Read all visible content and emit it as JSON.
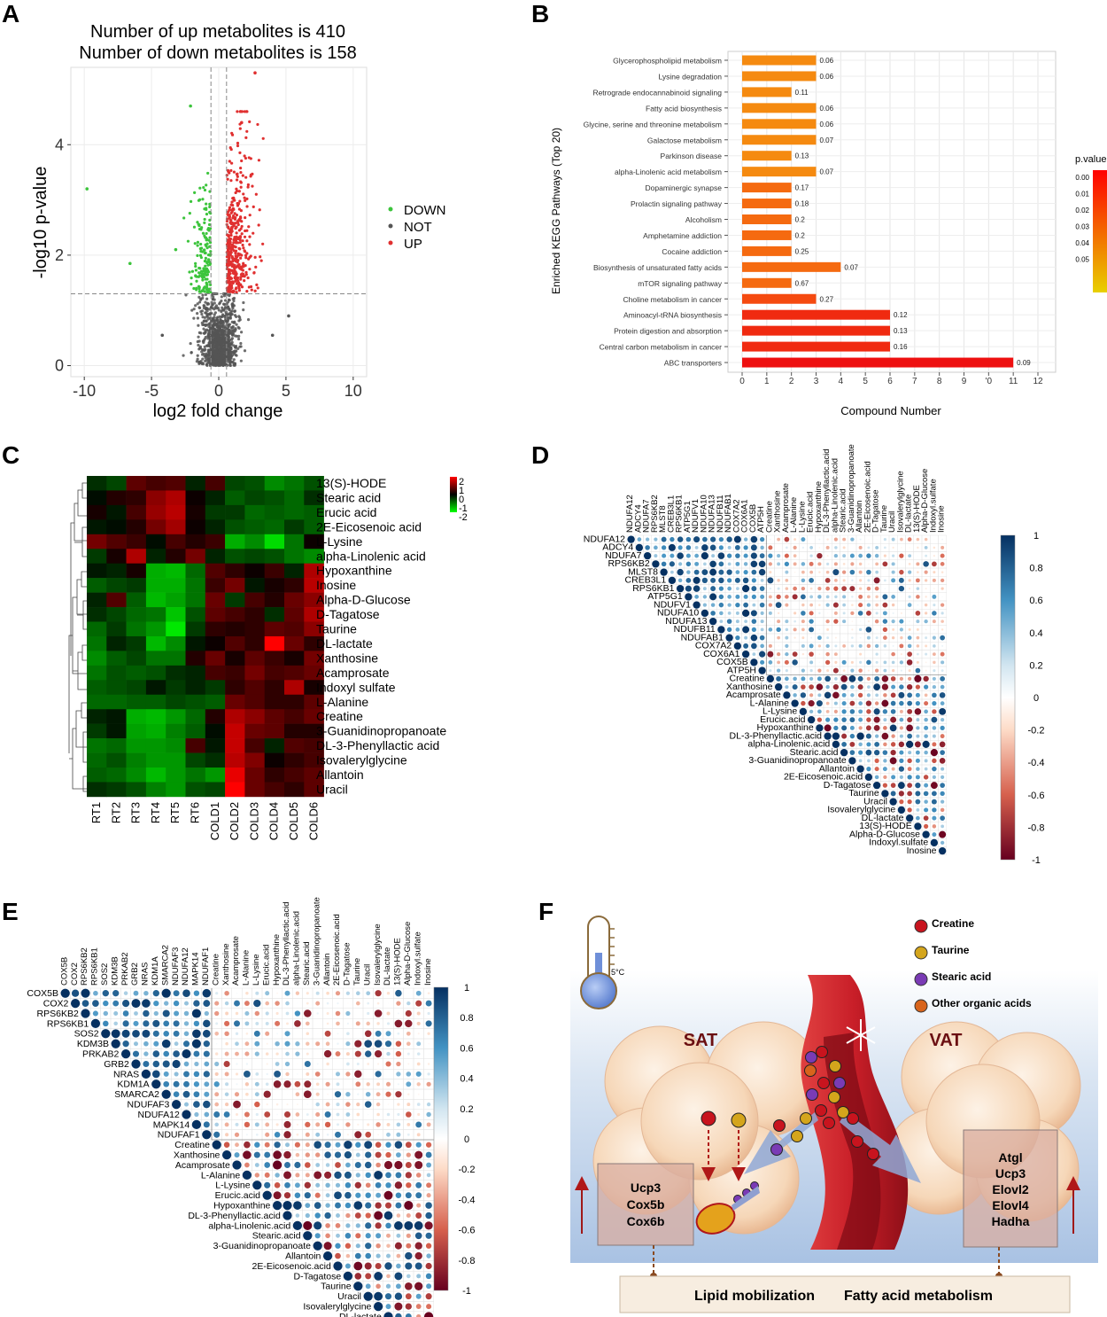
{
  "panels": {
    "a": "A",
    "b": "B",
    "c": "C",
    "d": "D",
    "e": "E",
    "f": "F"
  },
  "chart_data": [
    {
      "id": "A",
      "type": "scatter",
      "title": [
        "Number of up metabolites is 410",
        "Number of down metabolites is 158"
      ],
      "xlabel": "log2 fold change",
      "ylabel": "-log10 p-value",
      "xlim": [
        -11,
        11
      ],
      "ylim": [
        -0.2,
        5.4
      ],
      "xticks": [
        -10,
        -5,
        0,
        5,
        10
      ],
      "yticks": [
        0,
        2,
        4
      ],
      "threshold_x": [
        -0.58,
        0.58
      ],
      "threshold_y": 1.3,
      "legend": [
        {
          "name": "DOWN",
          "color": "#3cc43c"
        },
        {
          "name": "NOT",
          "color": "#555555"
        },
        {
          "name": "UP",
          "color": "#e03030"
        }
      ],
      "highlight_points": [
        {
          "x": 2.7,
          "y": 5.3,
          "group": "UP"
        },
        {
          "x": -2.1,
          "y": 4.7,
          "group": "DOWN"
        },
        {
          "x": -9.8,
          "y": 3.2,
          "group": "DOWN"
        },
        {
          "x": -6.6,
          "y": 1.85,
          "group": "DOWN"
        },
        {
          "x": -3.2,
          "y": 2.1,
          "group": "DOWN"
        },
        {
          "x": 1.7,
          "y": 4.4,
          "group": "UP"
        },
        {
          "x": -4.2,
          "y": 0.55,
          "group": "NOT"
        },
        {
          "x": 5.2,
          "y": 0.9,
          "group": "NOT"
        },
        {
          "x": 4.0,
          "y": 0.55,
          "group": "NOT"
        }
      ]
    },
    {
      "id": "B",
      "type": "bar",
      "orientation": "horizontal",
      "ylabel": "Enriched KEGG Pathways (Top 20)",
      "xlabel": "Compound Number",
      "xlim": [
        0,
        12
      ],
      "xticks": [
        "0",
        "1",
        "2",
        "3",
        "4",
        "5",
        "6",
        "7",
        "8",
        "9",
        "'0",
        "11",
        "12"
      ],
      "legend_title": "p.value",
      "legend_ticks": [
        "0.00",
        "0.01",
        "0.02",
        "0.03",
        "0.04",
        "0.05"
      ],
      "categories": [
        "Glycerophospholipid metabolism",
        "Lysine degradation",
        "Retrograde endocannabinoid signaling",
        "Fatty acid biosynthesis",
        "Glycine, serine and threonine metabolism",
        "Galactose metabolism",
        "Parkinson disease",
        "alpha-Linolenic acid metabolism",
        "Dopaminergic synapse",
        "Prolactin signaling pathway",
        "Alcoholism",
        "Amphetamine addiction",
        "Cocaine addiction",
        "Biosynthesis of unsaturated fatty acids",
        "mTOR signaling pathway",
        "Choline metabolism in cancer",
        "Aminoacyl-tRNA biosynthesis",
        "Protein digestion and absorption",
        "Central carbon metabolism in cancer",
        "ABC transporters"
      ],
      "values": [
        3,
        3,
        2,
        3,
        3,
        3,
        2,
        3,
        2,
        2,
        2,
        2,
        2,
        4,
        2,
        3,
        6,
        6,
        6,
        11
      ],
      "pvalues": [
        0.06,
        0.06,
        0.11,
        0.06,
        0.06,
        0.07,
        0.13,
        0.07,
        0.17,
        0.18,
        0.2,
        0.2,
        0.25,
        0.07,
        0.67,
        0.27,
        0.12,
        0.13,
        0.16,
        0.09
      ],
      "value_labels": [
        "0.06",
        "0.06",
        "0.11",
        "0.06",
        "0.06",
        "0.07",
        "0.13",
        "0.07",
        "0.17",
        "0.18",
        "0.2",
        "0.2",
        "0.25",
        "0.07",
        "0.67",
        "0.27",
        "0.12",
        "0.13",
        "0.16",
        "0.09"
      ],
      "bar_colors": [
        "#f58a10",
        "#f58a10",
        "#f58a10",
        "#f58a10",
        "#f58a10",
        "#f58a10",
        "#f58a10",
        "#f58a10",
        "#f56a10",
        "#f56a10",
        "#f56a10",
        "#f56a10",
        "#f56a10",
        "#f56a10",
        "#f56a10",
        "#f54a10",
        "#f02a10",
        "#f02a10",
        "#f02a10",
        "#ee1010"
      ]
    },
    {
      "id": "C",
      "type": "heatmap",
      "columns": [
        "RT1",
        "RT2",
        "RT3",
        "RT4",
        "RT5",
        "RT6",
        "COLD1",
        "COLD2",
        "COLD3",
        "COLD4",
        "COLD5",
        "COLD6"
      ],
      "rows": [
        "13(S)-HODE",
        "Stearic acid",
        "Erucic acid",
        "2E-Eicosenoic acid",
        "L-Lysine",
        "alpha-Linolenic acid",
        "Hypoxanthine",
        "Inosine",
        "Alpha-D-Glucose",
        "D-Tagatose",
        "Taurine",
        "DL-lactate",
        "Xanthosine",
        "Acamprosate",
        "Indoxyl sulfate",
        "L-Alanine",
        "Creatine",
        "3-Guanidinopropanoate",
        "DL-3-Phenyllactic acid",
        "Isovalerylglycine",
        "Allantoin",
        "Uracil"
      ],
      "colorbar_ticks": [
        "2",
        "1",
        "0",
        "-1",
        "-2"
      ],
      "values": [
        [
          -0.4,
          -0.6,
          0.8,
          0.6,
          0.7,
          -0.3,
          0.6,
          -0.6,
          -0.7,
          -1.2,
          -1.0,
          -0.7
        ],
        [
          -0.1,
          0.3,
          0.4,
          1.2,
          1.5,
          0.1,
          -0.3,
          -0.8,
          -0.6,
          -0.7,
          -0.9,
          -0.4
        ],
        [
          0.2,
          -0.2,
          0.6,
          1.3,
          1.6,
          0.2,
          -0.5,
          -0.5,
          -0.9,
          -0.8,
          -0.9,
          -0.8
        ],
        [
          -0.2,
          -0.1,
          0.3,
          1.0,
          1.4,
          0.1,
          -0.3,
          -0.7,
          -0.8,
          -0.9,
          -0.5,
          -0.8
        ],
        [
          1.0,
          0.7,
          0.5,
          -0.1,
          0.6,
          0.3,
          0.5,
          -1.5,
          -1.2,
          -1.9,
          -1.0,
          0.1
        ],
        [
          -0.5,
          0.2,
          1.5,
          -0.3,
          0.3,
          1.0,
          -0.3,
          -0.7,
          -0.6,
          -0.7,
          -1.0,
          -1.2
        ],
        [
          -0.2,
          -0.3,
          0.2,
          -1.5,
          -1.6,
          -0.9,
          0.7,
          0.4,
          0.1,
          0.5,
          -0.3,
          1.5
        ],
        [
          -0.8,
          -0.6,
          -0.5,
          -1.5,
          -1.5,
          -1.0,
          0.5,
          1.0,
          -0.2,
          0.2,
          0.4,
          1.6
        ],
        [
          -0.3,
          0.7,
          -0.8,
          -1.6,
          -1.4,
          -1.0,
          0.9,
          -0.5,
          0.6,
          0.3,
          0.9,
          1.2
        ],
        [
          -0.4,
          -0.6,
          -0.9,
          -1.0,
          -1.7,
          -0.7,
          0.8,
          0.6,
          0.4,
          -0.4,
          0.8,
          1.5
        ],
        [
          -0.9,
          -0.5,
          -1.0,
          -1.3,
          -2.0,
          -0.5,
          0.4,
          0.3,
          0.4,
          0.8,
          0.7,
          1.2
        ],
        [
          -1.0,
          -0.3,
          -0.5,
          -1.6,
          -1.2,
          -0.2,
          0.1,
          0.7,
          0.4,
          2.2,
          0.9,
          0.4
        ],
        [
          -1.2,
          -0.8,
          -0.6,
          -1.0,
          -1.0,
          0.3,
          0.9,
          0.2,
          0.8,
          0.5,
          0.2,
          1.0
        ],
        [
          -1.0,
          -0.7,
          -0.8,
          -0.7,
          -0.4,
          -0.3,
          0.6,
          0.5,
          1.0,
          0.6,
          0.7,
          0.9
        ],
        [
          -0.8,
          -0.7,
          -0.6,
          -0.2,
          -0.5,
          -0.3,
          -0.5,
          0.4,
          0.7,
          0.4,
          1.5,
          0.2
        ],
        [
          -0.9,
          -0.9,
          -0.8,
          -0.8,
          -0.6,
          -0.7,
          -0.8,
          0.9,
          0.7,
          0.4,
          0.4,
          0.8
        ],
        [
          -0.3,
          -0.2,
          -1.5,
          -1.6,
          -1.3,
          -0.9,
          0.3,
          1.5,
          1.2,
          0.8,
          0.6,
          0.9
        ],
        [
          -0.5,
          -0.2,
          -1.4,
          -1.5,
          -1.1,
          -0.8,
          -0.1,
          1.7,
          0.9,
          0.8,
          0.3,
          0.3
        ],
        [
          -1.0,
          -0.9,
          -1.3,
          -1.3,
          -1.2,
          0.6,
          -0.2,
          1.7,
          0.6,
          -0.3,
          0.7,
          0.6
        ],
        [
          -0.9,
          -0.7,
          -1.1,
          -1.3,
          -1.3,
          -0.6,
          -0.4,
          1.6,
          1.1,
          0.1,
          0.4,
          0.6
        ],
        [
          -0.8,
          -0.9,
          -1.2,
          -1.6,
          -1.3,
          -1.0,
          -1.3,
          2.0,
          0.9,
          0.4,
          0.6,
          0.8
        ],
        [
          -0.4,
          -0.5,
          -0.7,
          -1.1,
          -1.3,
          -0.7,
          -0.6,
          2.2,
          0.9,
          0.6,
          0.4,
          0.8
        ]
      ]
    },
    {
      "id": "D",
      "type": "heatmap",
      "subtype": "correlation",
      "genes": [
        "NDUFA12",
        "ADCY4",
        "NDUFA7",
        "RPS6KB2",
        "MLST8",
        "CREB3L1",
        "RPS6KB1",
        "ATP5G1",
        "NDUFV1",
        "NDUFA10",
        "NDUFA13",
        "NDUFB11",
        "NDUFAB1",
        "COX7A2",
        "COX6A1",
        "COX5B",
        "ATP5H"
      ],
      "metabolites": [
        "Creatine",
        "Xanthosine",
        "Acamprosate",
        "L-Alanine",
        "L-Lysine",
        "Erucic.acid",
        "Hypoxanthine",
        "DL-3-Phenyllactic.acid",
        "alpha-Linolenic.acid",
        "Stearic.acid",
        "3-Guanidinopropanoate",
        "Allantoin",
        "2E-Eicosenoic.acid",
        "D-Tagatose",
        "Taurine",
        "Uracil",
        "Isovalerylglycine",
        "DL-lactate",
        "13(S)-HODE",
        "Alpha-D-Glucose",
        "Indoxyl.sulfate",
        "Inosine"
      ],
      "colorbar_ticks": [
        "1",
        "0.8",
        "0.6",
        "0.4",
        "0.2",
        "0",
        "-0.2",
        "-0.4",
        "-0.6",
        "-0.8",
        "-1"
      ]
    },
    {
      "id": "E",
      "type": "heatmap",
      "subtype": "correlation",
      "genes": [
        "COX5B",
        "COX2",
        "RPS6KB2",
        "RPS6KB1",
        "SOS2",
        "KDM3B",
        "PRKAB2",
        "GRB2",
        "NRAS",
        "KDM1A",
        "SMARCA2",
        "NDUFAF3",
        "NDUFA12",
        "MAPK14",
        "NDUFAF1"
      ],
      "metabolites": [
        "Creatine",
        "Xanthosine",
        "Acamprosate",
        "L-Alanine",
        "L-Lysine",
        "Erucic.acid",
        "Hypoxanthine",
        "DL-3-Phenyllactic.acid",
        "alpha-Linolenic.acid",
        "Stearic.acid",
        "3-Guanidinopropanoate",
        "Allantoin",
        "2E-Eicosenoic.acid",
        "D-Tagatose",
        "Taurine",
        "Uracil",
        "Isovalerylglycine",
        "DL-lactate",
        "13(S)-HODE",
        "Alpha-D-Glucose",
        "Indoxyl.sulfate",
        "Inosine"
      ],
      "colorbar_ticks": [
        "1",
        "0.8",
        "0.6",
        "0.4",
        "0.2",
        "0",
        "-0.2",
        "-0.4",
        "-0.6",
        "-0.8",
        "-1"
      ]
    }
  ],
  "schematic": {
    "temperature": "5°C",
    "legend": [
      {
        "label": "Creatine",
        "color": "#c8141e"
      },
      {
        "label": "Taurine",
        "color": "#d4a51c"
      },
      {
        "label": "Stearic acid",
        "color": "#7a3bb5"
      },
      {
        "label": "Other organic acids",
        "color": "#d8641c"
      }
    ],
    "sat_label": "SAT",
    "vat_label": "VAT",
    "sat_genes": [
      "Ucp3",
      "Cox5b",
      "Cox6b"
    ],
    "vat_genes": [
      "Atgl",
      "Ucp3",
      "Elovl2",
      "Elovl4",
      "Hadha"
    ],
    "bottom_label_1": "Lipid mobilization",
    "bottom_label_2": "Fatty acid metabolism"
  }
}
